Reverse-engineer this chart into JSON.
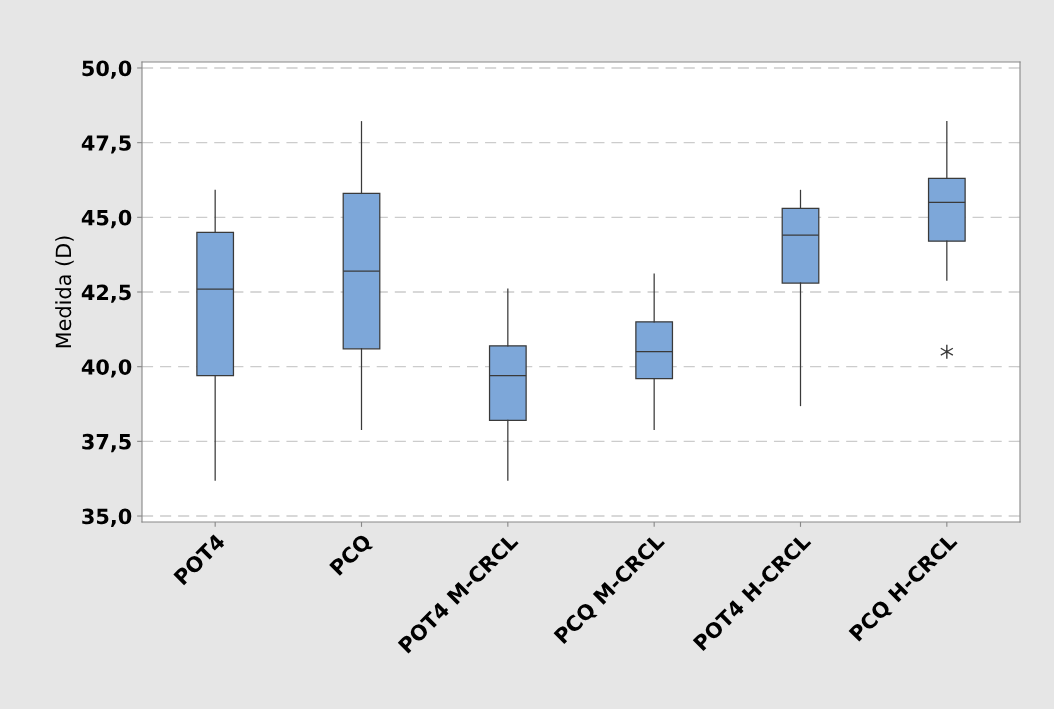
{
  "chart_data": {
    "type": "box",
    "ylabel": "Medida (D)",
    "categories": [
      "POT4",
      "PCQ",
      "POT4 M-CRCL",
      "PCQ M-CRCL",
      "POT4 H-CRCL",
      "PCQ H-CRCL"
    ],
    "boxes": [
      {
        "low": 36.2,
        "q1": 39.7,
        "median": 42.6,
        "q3": 44.5,
        "high": 45.9
      },
      {
        "low": 37.9,
        "q1": 40.6,
        "median": 43.2,
        "q3": 45.8,
        "high": 48.2
      },
      {
        "low": 36.2,
        "q1": 38.2,
        "median": 39.7,
        "q3": 40.7,
        "high": 42.6
      },
      {
        "low": 37.9,
        "q1": 39.6,
        "median": 40.5,
        "q3": 41.5,
        "high": 43.1
      },
      {
        "low": 38.7,
        "q1": 42.8,
        "median": 44.4,
        "q3": 45.3,
        "high": 45.9
      },
      {
        "low": 42.9,
        "q1": 44.2,
        "median": 45.5,
        "q3": 46.3,
        "high": 48.2,
        "outliers": [
          40.5
        ]
      }
    ],
    "color": "#7da7d9",
    "ylim": [
      34.8,
      50.2
    ],
    "yticks": [
      {
        "value": 35,
        "label": "35,0"
      },
      {
        "value": 37.5,
        "label": "37,5"
      },
      {
        "value": 40,
        "label": "40,0"
      },
      {
        "value": 42.5,
        "label": "42,5"
      },
      {
        "value": 45,
        "label": "45,0"
      },
      {
        "value": 47.5,
        "label": "47,5"
      },
      {
        "value": 50,
        "label": "50,0"
      }
    ],
    "grid": "y"
  }
}
